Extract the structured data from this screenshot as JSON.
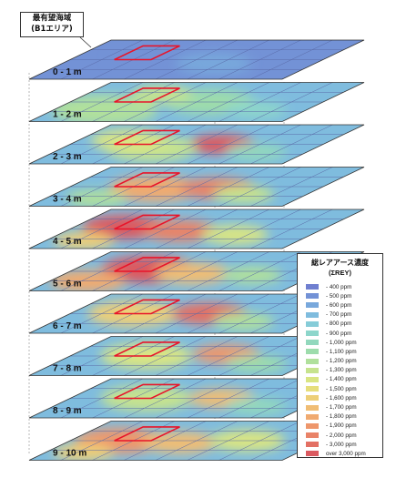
{
  "callout": {
    "line1": "最有望海域",
    "line2": "(B1エリア)"
  },
  "layers": [
    {
      "label": "0 - 1 m"
    },
    {
      "label": "1 - 2 m"
    },
    {
      "label": "2 - 3 m"
    },
    {
      "label": "3 - 4 m"
    },
    {
      "label": "4 - 5 m"
    },
    {
      "label": "5 - 6 m"
    },
    {
      "label": "6 - 7 m"
    },
    {
      "label": "7 - 8 m"
    },
    {
      "label": "8 - 9 m"
    },
    {
      "label": "9 - 10 m"
    }
  ],
  "legend": {
    "title": "総レアアース濃度",
    "subtitle": "(ΣREY)",
    "items": [
      {
        "label": "- 400 ppm",
        "color": "#6f7fd0"
      },
      {
        "label": "- 500 ppm",
        "color": "#7392d6"
      },
      {
        "label": "- 600 ppm",
        "color": "#78a8dc"
      },
      {
        "label": "- 700 ppm",
        "color": "#7fbcde"
      },
      {
        "label": "- 800 ppm",
        "color": "#86ccd8"
      },
      {
        "label": "- 900 ppm",
        "color": "#8dd6cb"
      },
      {
        "label": "- 1,000 ppm",
        "color": "#92d8bd"
      },
      {
        "label": "- 1,100 ppm",
        "color": "#9ddcac"
      },
      {
        "label": "- 1,200 ppm",
        "color": "#b0e09c"
      },
      {
        "label": "- 1,300 ppm",
        "color": "#c6e38e"
      },
      {
        "label": "- 1,400 ppm",
        "color": "#d9e583"
      },
      {
        "label": "- 1,500 ppm",
        "color": "#e6de7c"
      },
      {
        "label": "- 1,600 ppm",
        "color": "#edcf78"
      },
      {
        "label": "- 1,700 ppm",
        "color": "#f0bd74"
      },
      {
        "label": "- 1,800 ppm",
        "color": "#f0aa70"
      },
      {
        "label": "- 1,900 ppm",
        "color": "#ee976c"
      },
      {
        "label": "- 2,000 ppm",
        "color": "#e98368"
      },
      {
        "label": "- 3,000 ppm",
        "color": "#e37064"
      },
      {
        "label": "over 3,000 ppm",
        "color": "#db5a60"
      }
    ]
  },
  "colors": {
    "base": "#6f7fd0",
    "highlight_box": "#e8142a",
    "grid_line": "#5a6aa8"
  }
}
